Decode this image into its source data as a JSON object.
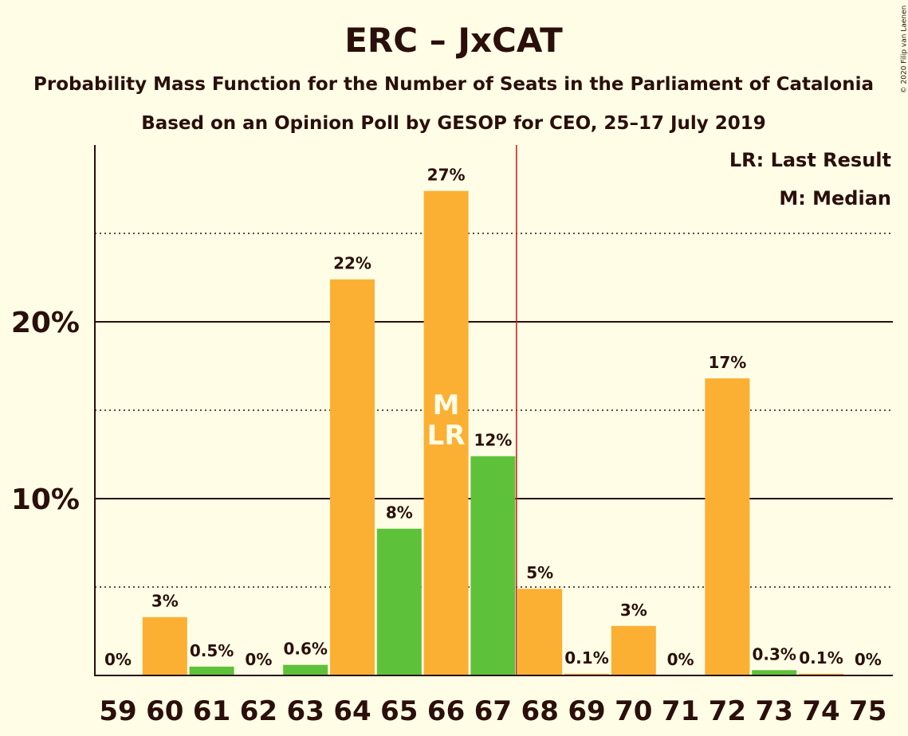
{
  "chart_data": {
    "type": "bar",
    "title": "ERC – JxCAT",
    "subtitle": "Probability Mass Function for the Number of Seats in the Parliament of Catalonia",
    "subtitle2": "Based on an Opinion Poll by GESOP for CEO, 25–17 July 2019",
    "copyright": "© 2020 Filip van Laenen",
    "categories": [
      "59",
      "60",
      "61",
      "62",
      "63",
      "64",
      "65",
      "66",
      "67",
      "68",
      "69",
      "70",
      "71",
      "72",
      "73",
      "74",
      "75"
    ],
    "values": [
      0,
      3.3,
      0.5,
      0,
      0.6,
      22.4,
      8.3,
      27.4,
      12.4,
      4.9,
      0.1,
      2.8,
      0,
      16.8,
      0.3,
      0.1,
      0
    ],
    "value_labels": [
      "0%",
      "3%",
      "0.5%",
      "0%",
      "0.6%",
      "22%",
      "8%",
      "27%",
      "12%",
      "5%",
      "0.1%",
      "3%",
      "0%",
      "17%",
      "0.3%",
      "0.1%",
      "0%"
    ],
    "bar_colors": [
      "#fbb034",
      "#fbb034",
      "#5ec13a",
      "#fbb034",
      "#5ec13a",
      "#fbb034",
      "#5ec13a",
      "#fbb034",
      "#5ec13a",
      "#fbb034",
      "#fbb034",
      "#fbb034",
      "#fbb034",
      "#fbb034",
      "#5ec13a",
      "#fbb034",
      "#fbb034"
    ],
    "ylim": [
      0,
      30
    ],
    "yticks": [
      {
        "value": 10,
        "label": "10%"
      },
      {
        "value": 20,
        "label": "20%"
      }
    ],
    "gridlines_dotted": [
      5,
      15,
      25
    ],
    "majority_line_after": "67",
    "median_category": "66",
    "last_result_category": "66",
    "median_mark": "M",
    "last_result_mark": "LR",
    "legend": [
      "LR: Last Result",
      "M: Median"
    ],
    "colors": {
      "background": "#fffde6",
      "orange": "#fbb034",
      "green": "#5ec13a",
      "text": "#2a0f0a",
      "majority_line": "#e01010"
    }
  }
}
